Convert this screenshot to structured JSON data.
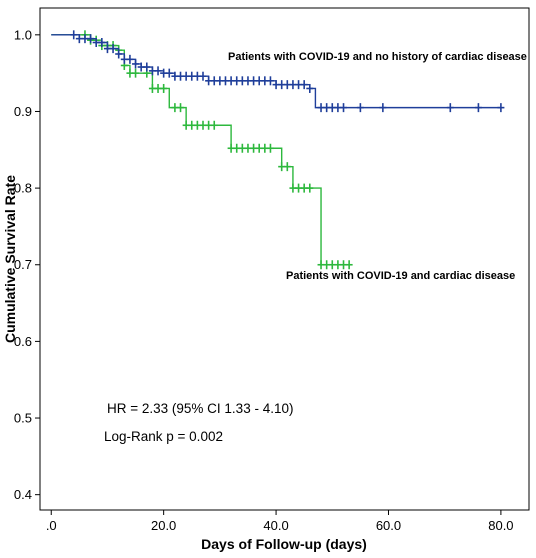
{
  "chart_data": {
    "type": "line",
    "title": "",
    "xlabel": "Days of Follow-up (days)",
    "ylabel": "Cumulative Survival Rate",
    "xlim": [
      -2,
      85
    ],
    "ylim": [
      0.38,
      1.035
    ],
    "x_ticks": [
      0,
      20,
      40,
      60,
      80
    ],
    "x_tick_labels": [
      ".0",
      "20.0",
      "40.0",
      "60.0",
      "80.0"
    ],
    "y_ticks": [
      0.4,
      0.5,
      0.6,
      0.7,
      0.8,
      0.9,
      1.0
    ],
    "y_tick_labels": [
      "0.4",
      "0.5",
      "0.6",
      "0.7",
      "0.8",
      "0.9",
      "1.0"
    ],
    "grid": false,
    "colors": {
      "no_cardiac": "#1f3e9a",
      "cardiac": "#2db83d"
    },
    "series": [
      {
        "name": "Patients with COVID-19 and no history of cardiac disease",
        "color_key": "no_cardiac",
        "steps": [
          [
            0,
            1.0
          ],
          [
            5,
            0.995
          ],
          [
            8,
            0.99
          ],
          [
            10,
            0.982
          ],
          [
            12,
            0.975
          ],
          [
            13,
            0.968
          ],
          [
            15,
            0.962
          ],
          [
            16,
            0.958
          ],
          [
            18,
            0.953
          ],
          [
            20,
            0.95
          ],
          [
            22,
            0.946
          ],
          [
            28,
            0.94
          ],
          [
            40,
            0.935
          ],
          [
            46,
            0.93
          ],
          [
            47,
            0.905
          ],
          [
            80,
            0.905
          ]
        ],
        "censored": [
          4,
          5,
          6,
          7,
          8,
          9,
          10,
          11,
          12,
          13,
          14,
          15,
          16,
          17,
          18,
          19,
          20,
          21,
          22,
          23,
          24,
          25,
          26,
          27,
          28,
          29,
          30,
          31,
          32,
          33,
          34,
          35,
          36,
          37,
          38,
          39,
          40,
          41,
          42,
          43,
          44,
          45,
          46,
          48,
          49,
          50,
          51,
          52,
          55,
          59,
          71,
          76,
          80
        ]
      },
      {
        "name": "Patients with COVID-19 and cardiac disease",
        "color_key": "cardiac",
        "steps": [
          [
            0,
            1.0
          ],
          [
            7,
            0.993
          ],
          [
            9,
            0.986
          ],
          [
            12,
            0.98
          ],
          [
            13,
            0.96
          ],
          [
            14,
            0.95
          ],
          [
            18,
            0.93
          ],
          [
            21,
            0.905
          ],
          [
            24,
            0.882
          ],
          [
            32,
            0.852
          ],
          [
            41,
            0.828
          ],
          [
            43,
            0.8
          ],
          [
            48,
            0.7
          ],
          [
            53,
            0.7
          ]
        ],
        "censored": [
          6,
          7,
          8,
          9,
          10,
          11,
          12,
          13,
          14,
          15,
          17,
          18,
          19,
          20,
          22,
          23,
          24,
          25,
          26,
          27,
          28,
          29,
          32,
          33,
          34,
          35,
          36,
          37,
          38,
          39,
          41,
          42,
          43,
          44,
          45,
          46,
          48,
          49,
          50,
          51,
          52,
          53
        ]
      }
    ],
    "annotations": {
      "hr": "HR = 2.33 (95% CI 1.33 - 4.10)",
      "logrank": "Log-Rank p = 0.002"
    }
  }
}
